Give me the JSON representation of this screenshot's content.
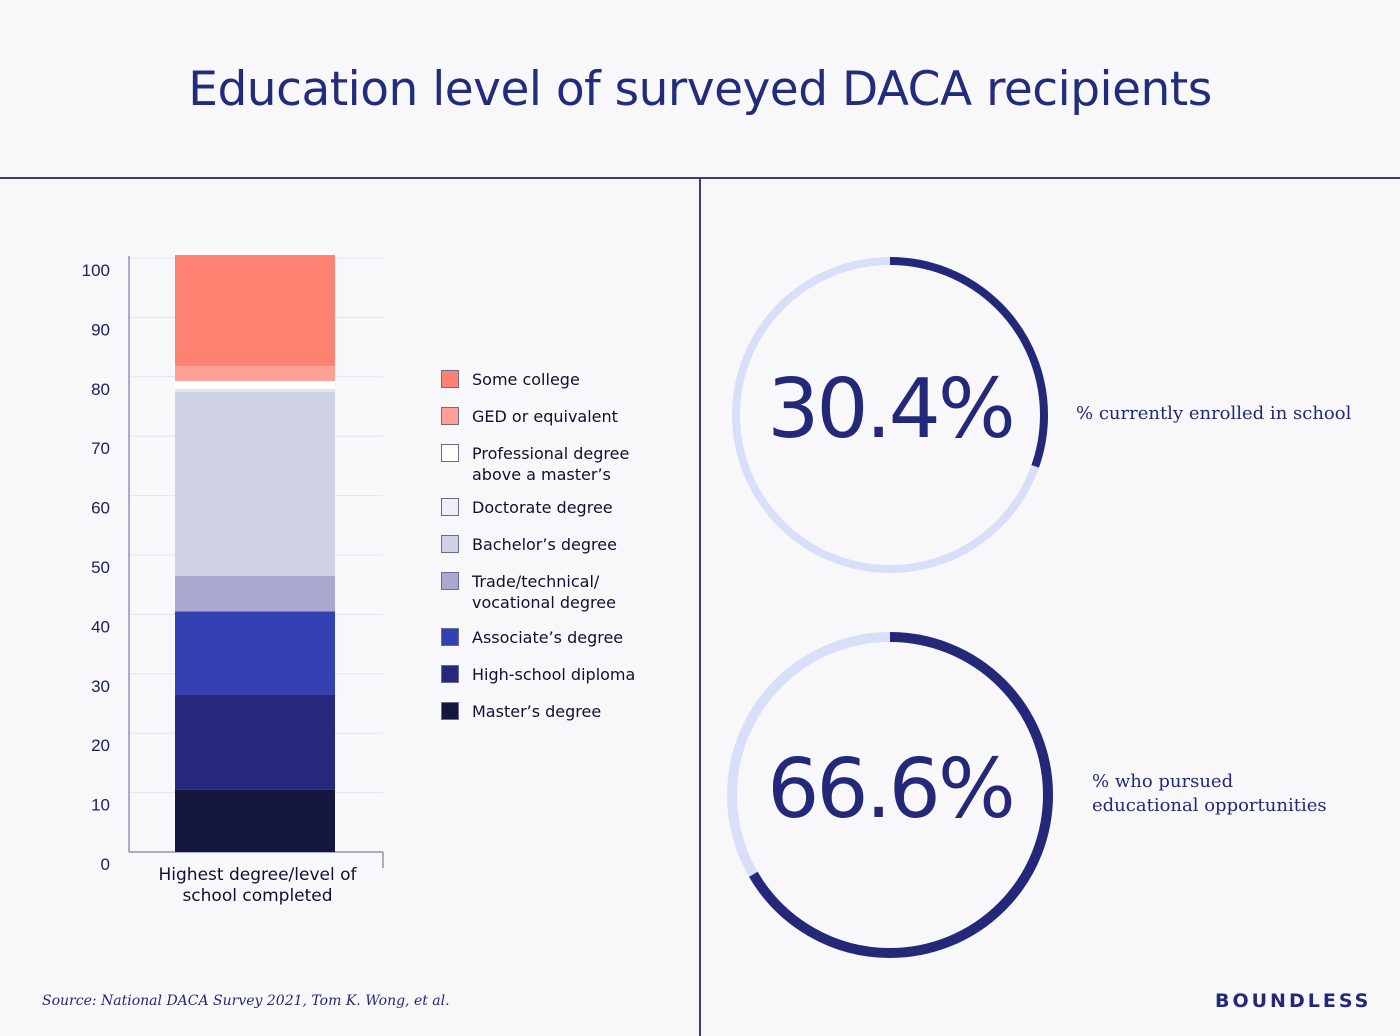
{
  "title": "Education level of surveyed DACA recipients",
  "chart_data": [
    {
      "type": "bar",
      "subtype": "stacked-100",
      "xlabel": "Highest degree/level of school completed",
      "ylim": [
        0,
        100
      ],
      "yticks": [
        0,
        10,
        20,
        30,
        40,
        50,
        60,
        70,
        80,
        90,
        100
      ],
      "grid": true,
      "legend_position": "right",
      "segments": [
        {
          "name": "Master’s degree",
          "value": 10.5,
          "color": "#15163d"
        },
        {
          "name": "High-school diploma",
          "value": 16,
          "color": "#25287c"
        },
        {
          "name": "Associate’s degree",
          "value": 14,
          "color": "#3441b3"
        },
        {
          "name": "Trade/technical/ vocational degree",
          "value": 6,
          "color": "#a9a9cf"
        },
        {
          "name": "Bachelor’s degree",
          "value": 31,
          "color": "#cfd2e7"
        },
        {
          "name": "Doctorate degree",
          "value": 0.5,
          "color": "#e6e7f1"
        },
        {
          "name": "Professional degree above a master’s",
          "value": 1.3,
          "color": "#ffffff"
        },
        {
          "name": "GED or equivalent",
          "value": 2.5,
          "color": "#fea095"
        },
        {
          "name": "Some college",
          "value": 18.7,
          "color": "#fe8172"
        }
      ],
      "legend": [
        {
          "label": "Some college",
          "color": "#fe8172"
        },
        {
          "label": "GED or equivalent",
          "color": "#fea095"
        },
        {
          "label": "Professional degree above a master’s",
          "color": "#ffffff"
        },
        {
          "label": "Doctorate degree",
          "color": "#eeeef5"
        },
        {
          "label": "Bachelor’s degree",
          "color": "#cfd2e7"
        },
        {
          "label": "Trade/technical/ vocational degree",
          "color": "#a9a9cf"
        },
        {
          "label": "Associate’s degree",
          "color": "#3441b3"
        },
        {
          "label": "High-school diploma",
          "color": "#25287c"
        },
        {
          "label": "Master’s degree",
          "color": "#15163d"
        }
      ]
    },
    {
      "type": "pie",
      "subtype": "donut",
      "value": 30.4,
      "display": "30.4%",
      "caption": "% currently enrolled in school",
      "color": "#232878",
      "track_color": "#dadff9"
    },
    {
      "type": "pie",
      "subtype": "donut",
      "value": 66.6,
      "display": "66.6%",
      "caption": "% who pursued educational opportunities",
      "color": "#232878",
      "track_color": "#dadff9"
    }
  ],
  "source": "Source: National DACA Survey 2021, Tom K. Wong, et al.",
  "brand": "BOUNDLESS"
}
